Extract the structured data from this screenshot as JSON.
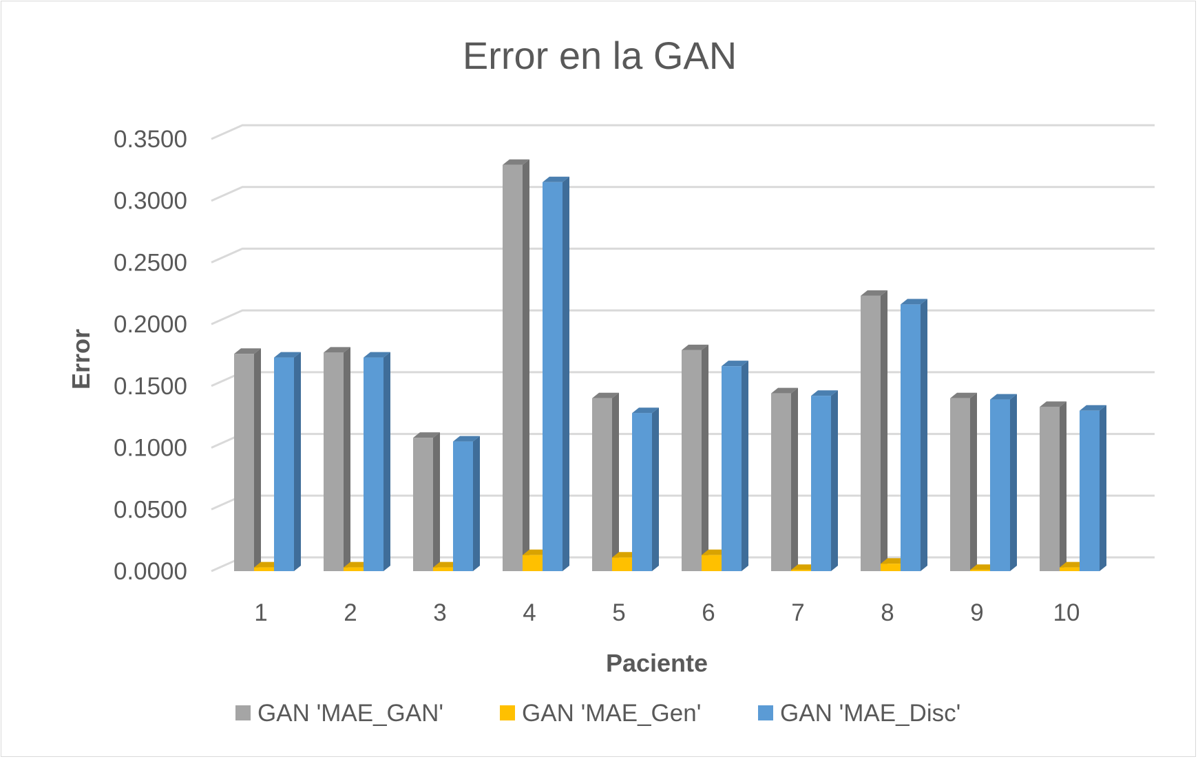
{
  "chart_data": {
    "type": "bar",
    "title": "Error en la GAN",
    "xlabel": "Paciente",
    "ylabel": "Error",
    "categories": [
      "1",
      "2",
      "3",
      "4",
      "5",
      "6",
      "7",
      "8",
      "9",
      "10"
    ],
    "ylim": [
      0,
      0.35
    ],
    "yticks": [
      "0.0000",
      "0.0500",
      "0.1000",
      "0.1500",
      "0.2000",
      "0.2500",
      "0.3000",
      "0.3500"
    ],
    "grid": true,
    "legend": "bottom",
    "series": [
      {
        "name": "GAN  'MAE_GAN'",
        "color": "#a5a5a5",
        "side_color": "#6f6f6f",
        "top_color": "#7f7f7f",
        "values": [
          0.176,
          0.177,
          0.108,
          0.329,
          0.14,
          0.179,
          0.144,
          0.223,
          0.14,
          0.133
        ]
      },
      {
        "name": "GAN  'MAE_Gen'",
        "color": "#ffc000",
        "side_color": "#bf9000",
        "top_color": "#d9a300",
        "values": [
          0.003,
          0.003,
          0.003,
          0.013,
          0.011,
          0.013,
          0.001,
          0.006,
          0.001,
          0.003
        ]
      },
      {
        "name": "GAN  'MAE_Disc'",
        "color": "#5b9bd5",
        "side_color": "#3f6d99",
        "top_color": "#4a7fb0",
        "values": [
          0.173,
          0.173,
          0.105,
          0.315,
          0.128,
          0.166,
          0.142,
          0.216,
          0.139,
          0.13
        ]
      }
    ]
  }
}
